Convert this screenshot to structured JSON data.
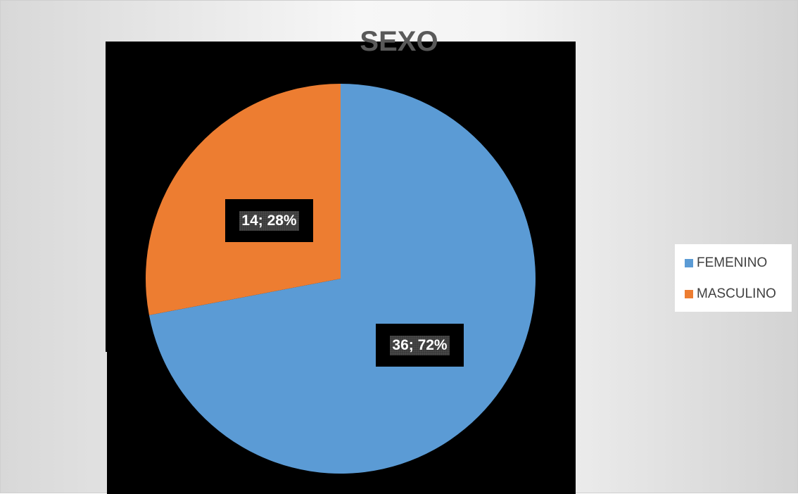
{
  "chart_data": {
    "type": "pie",
    "title": "SEXO",
    "categories": [
      "FEMENINO",
      "MASCULINO"
    ],
    "values": [
      36,
      14
    ],
    "percentages": [
      72,
      28
    ],
    "data_labels": [
      "36; 72%",
      "14; 28%"
    ],
    "colors": [
      "#5b9bd5",
      "#ed7d31"
    ],
    "legend_position": "right"
  }
}
